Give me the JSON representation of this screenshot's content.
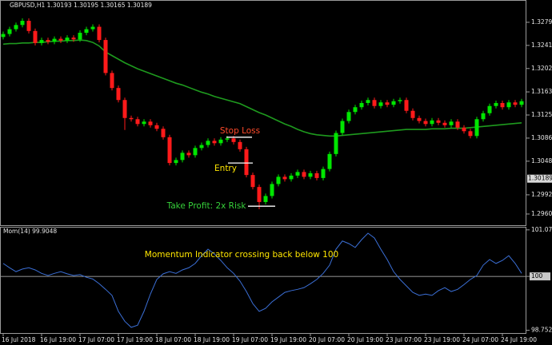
{
  "chart_data": [
    {
      "type": "candlestick",
      "title": "GBPUSD,H1 1.30193 1.30195 1.30165 1.30189",
      "categories": [
        "16 Jul 2018",
        null,
        null,
        null,
        null,
        null,
        "16 Jul 19:00",
        null,
        null,
        null,
        null,
        null,
        "17 Jul 07:00",
        null,
        null,
        null,
        null,
        null,
        "17 Jul 19:00",
        null,
        null,
        null,
        null,
        null,
        "18 Jul 07:00",
        null,
        null,
        null,
        null,
        null,
        "18 Jul 19:00",
        null,
        null,
        null,
        null,
        null,
        "19 Jul 07:00",
        null,
        null,
        null,
        null,
        null,
        "19 Jul 19:00",
        null,
        null,
        null,
        null,
        null,
        "20 Jul 07:00",
        null,
        null,
        null,
        null,
        null,
        "20 Jul 19:00",
        null,
        null,
        null,
        null,
        null,
        "23 Jul 07:00",
        null,
        null,
        null,
        null,
        null,
        "23 Jul 19:00",
        null,
        null,
        null,
        null,
        null,
        "24 Jul 07:00",
        null,
        null,
        null,
        null,
        null,
        "24 Jul 19:00",
        null,
        null,
        null
      ],
      "open": [
        1.3255,
        1.326,
        1.3268,
        1.3275,
        1.3282,
        1.3265,
        1.3245,
        1.325,
        1.3247,
        1.3252,
        1.3249,
        1.3254,
        1.3251,
        1.3262,
        1.3268,
        1.3272,
        1.325,
        1.3195,
        1.317,
        1.315,
        1.312,
        1.3118,
        1.311,
        1.3114,
        1.3108,
        1.3102,
        1.3088,
        1.3045,
        1.305,
        1.3062,
        1.3058,
        1.307,
        1.3075,
        1.3082,
        1.3078,
        1.3084,
        1.3086,
        1.308,
        1.3068,
        1.3025,
        1.3005,
        1.298,
        1.299,
        1.301,
        1.3022,
        1.3018,
        1.3024,
        1.303,
        1.3022,
        1.3028,
        1.302,
        1.3035,
        1.306,
        1.3095,
        1.3115,
        1.313,
        1.3138,
        1.3145,
        1.315,
        1.314,
        1.3146,
        1.3142,
        1.3148,
        1.315,
        1.3132,
        1.312,
        1.3115,
        1.311,
        1.3116,
        1.3112,
        1.3108,
        1.3114,
        1.3104,
        1.3098,
        1.309,
        1.3118,
        1.3128,
        1.314,
        1.3145,
        1.3138,
        1.3146,
        1.3142
      ],
      "high": [
        1.3264,
        1.3272,
        1.3279,
        1.3286,
        1.3286,
        1.3269,
        1.3254,
        1.3254,
        1.3256,
        1.3256,
        1.3258,
        1.3258,
        1.3266,
        1.3272,
        1.3276,
        1.3276,
        1.3254,
        1.3199,
        1.3174,
        1.3154,
        1.3124,
        1.3122,
        1.3118,
        1.3118,
        1.3112,
        1.3106,
        1.3092,
        1.3054,
        1.3066,
        1.3066,
        1.3074,
        1.3079,
        1.3086,
        1.3086,
        1.3088,
        1.309,
        1.309,
        1.3084,
        1.3072,
        1.3029,
        1.3009,
        1.2994,
        1.3014,
        1.3026,
        1.3026,
        1.3028,
        1.3034,
        1.3034,
        1.3032,
        1.3032,
        1.3039,
        1.3064,
        1.3099,
        1.3119,
        1.3134,
        1.3142,
        1.3149,
        1.3154,
        1.3154,
        1.315,
        1.315,
        1.3152,
        1.3154,
        1.3154,
        1.3136,
        1.3124,
        1.3119,
        1.312,
        1.312,
        1.3116,
        1.3118,
        1.3118,
        1.3108,
        1.3102,
        1.3122,
        1.3132,
        1.3144,
        1.3149,
        1.3149,
        1.315,
        1.315,
        1.3152
      ],
      "low": [
        1.3251,
        1.3256,
        1.3264,
        1.3271,
        1.3261,
        1.3241,
        1.3241,
        1.3243,
        1.3243,
        1.3245,
        1.3245,
        1.3247,
        1.3247,
        1.3258,
        1.3264,
        1.3246,
        1.3191,
        1.3166,
        1.3146,
        1.31,
        1.3114,
        1.3106,
        1.3106,
        1.3104,
        1.3098,
        1.3084,
        1.3041,
        1.3041,
        1.3046,
        1.3054,
        1.3054,
        1.3066,
        1.3071,
        1.3074,
        1.3074,
        1.308,
        1.3076,
        1.3064,
        1.3021,
        1.3001,
        1.2968,
        1.2976,
        1.2986,
        1.3006,
        1.3014,
        1.3014,
        1.302,
        1.3018,
        1.3018,
        1.3016,
        1.3016,
        1.3031,
        1.3056,
        1.3091,
        1.3111,
        1.3126,
        1.3134,
        1.3141,
        1.3136,
        1.3136,
        1.3138,
        1.3138,
        1.3144,
        1.3128,
        1.3116,
        1.3111,
        1.3106,
        1.3106,
        1.3108,
        1.3104,
        1.3104,
        1.31,
        1.3094,
        1.3086,
        1.3086,
        1.3114,
        1.3124,
        1.3136,
        1.3134,
        1.3134,
        1.3138,
        1.3138
      ],
      "close": [
        1.326,
        1.3268,
        1.3275,
        1.3282,
        1.3265,
        1.3245,
        1.325,
        1.3247,
        1.3252,
        1.3249,
        1.3254,
        1.3251,
        1.3262,
        1.3268,
        1.3272,
        1.325,
        1.3195,
        1.317,
        1.315,
        1.312,
        1.3118,
        1.311,
        1.3114,
        1.3108,
        1.3102,
        1.3088,
        1.3045,
        1.305,
        1.3062,
        1.3058,
        1.307,
        1.3075,
        1.3082,
        1.3078,
        1.3084,
        1.3086,
        1.308,
        1.3068,
        1.3025,
        1.3005,
        1.298,
        1.299,
        1.301,
        1.3022,
        1.3018,
        1.3024,
        1.303,
        1.3022,
        1.3028,
        1.302,
        1.3035,
        1.306,
        1.3095,
        1.3115,
        1.313,
        1.3138,
        1.3145,
        1.315,
        1.314,
        1.3146,
        1.3142,
        1.3148,
        1.315,
        1.3132,
        1.312,
        1.3115,
        1.311,
        1.3116,
        1.3112,
        1.3108,
        1.3114,
        1.3104,
        1.3098,
        1.309,
        1.3118,
        1.3128,
        1.314,
        1.3145,
        1.3138,
        1.3146,
        1.3142,
        1.3148
      ],
      "up_color": "#00e600",
      "down_color": "#ff1a1a",
      "ma": {
        "color": "#1e9a1e",
        "values": [
          1.3243,
          1.3244,
          1.3244,
          1.3245,
          1.3245,
          1.3246,
          1.3246,
          1.3247,
          1.3248,
          1.3248,
          1.3249,
          1.3249,
          1.325,
          1.3249,
          1.3246,
          1.324,
          1.323,
          1.3224,
          1.3218,
          1.3212,
          1.3207,
          1.3202,
          1.3198,
          1.3194,
          1.319,
          1.3186,
          1.3182,
          1.3178,
          1.3175,
          1.3171,
          1.3167,
          1.3163,
          1.316,
          1.3156,
          1.3153,
          1.315,
          1.3147,
          1.3144,
          1.3139,
          1.3134,
          1.3129,
          1.3125,
          1.312,
          1.3115,
          1.311,
          1.3106,
          1.3101,
          1.3097,
          1.3094,
          1.3092,
          1.3091,
          1.309,
          1.309,
          1.3091,
          1.3092,
          1.3093,
          1.3094,
          1.3095,
          1.3096,
          1.3097,
          1.3098,
          1.3099,
          1.31,
          1.3101,
          1.3101,
          1.3101,
          1.3101,
          1.3102,
          1.3102,
          1.3102,
          1.3103,
          1.3103,
          1.3103,
          1.3104,
          1.3105,
          1.3106,
          1.3107,
          1.3108,
          1.3109,
          1.311,
          1.3111,
          1.3112
        ]
      },
      "ylim": [
        1.294,
        1.331
      ],
      "yticks": [
        1.32795,
        {
          "value": 1.3241,
          "label": "1.32410"
        },
        1.32025,
        1.31635,
        {
          "value": 1.3125,
          "label": "1.31250"
        },
        1.30865,
        {
          "value": 1.3048,
          "label": "1.30480"
        },
        {
          "value": 1.2992,
          "label": "1.29920"
        },
        {
          "value": 1.296,
          "label": "1.29600"
        }
      ],
      "last_price": 1.30189,
      "annotations": [
        {
          "text": "Stop Loss",
          "color": "#ff4a2a",
          "level": 1.3088
        },
        {
          "text": "Entry",
          "color": "#ffe600",
          "level": 1.3045
        },
        {
          "text": "Take Profit: 2x Risk",
          "color": "#36d13a",
          "level": 1.2973
        }
      ]
    },
    {
      "type": "line",
      "title": "Mom(14) 99.9048",
      "color": "#3b6fd6",
      "values": [
        100.3,
        100.2,
        100.11,
        100.17,
        100.2,
        100.15,
        100.07,
        100.02,
        100.07,
        100.11,
        100.06,
        100.02,
        100.04,
        99.98,
        99.94,
        99.83,
        99.7,
        99.56,
        99.19,
        98.96,
        98.82,
        98.87,
        99.19,
        99.59,
        99.93,
        100.06,
        100.11,
        100.07,
        100.15,
        100.2,
        100.3,
        100.48,
        100.63,
        100.52,
        100.37,
        100.2,
        100.07,
        99.89,
        99.65,
        99.37,
        99.19,
        99.26,
        99.41,
        99.52,
        99.63,
        99.67,
        99.7,
        99.74,
        99.83,
        99.93,
        100.07,
        100.26,
        100.63,
        100.82,
        100.76,
        100.67,
        100.85,
        101.0,
        100.89,
        100.63,
        100.39,
        100.11,
        99.93,
        99.78,
        99.63,
        99.56,
        99.59,
        99.56,
        99.67,
        99.74,
        99.65,
        99.7,
        99.81,
        99.93,
        100.02,
        100.26,
        100.39,
        100.3,
        100.37,
        100.48,
        100.3,
        100.07
      ],
      "ylim": [
        98.67,
        101.13
      ],
      "yticks": [
        101.0778,
        100,
        98.7527
      ],
      "reference": 100,
      "annotations": [
        {
          "text": "Momentum Indicator crossing back below 100",
          "color": "#ffe600"
        }
      ]
    }
  ]
}
